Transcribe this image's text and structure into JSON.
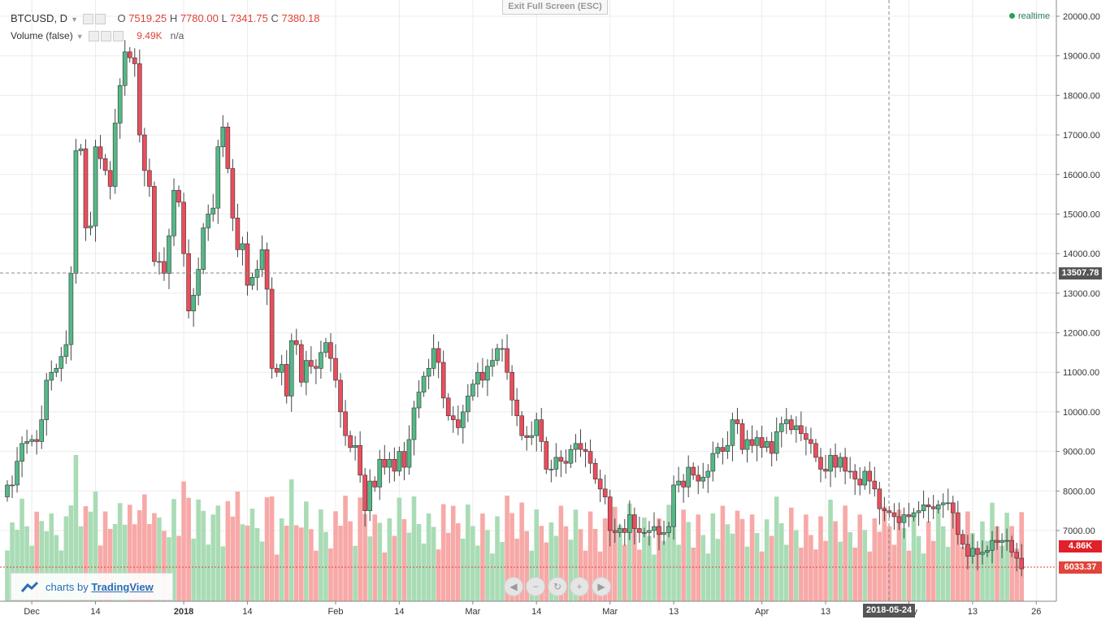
{
  "legend": {
    "symbol": "BTCUSD, D",
    "o_label": "O",
    "o": "7519.25",
    "h_label": "H",
    "h": "7780.00",
    "l_label": "L",
    "l": "7341.75",
    "c_label": "C",
    "c": "7380.18",
    "volume_label": "Volume (false)",
    "volume_value": "9.49K",
    "volume_na": "n/a"
  },
  "exit_fullscreen": "Exit Full Screen (ESC)",
  "realtime": "realtime",
  "branding": {
    "prefix": "charts by",
    "name": "TradingView"
  },
  "crosshair": {
    "price_label": "13507.78",
    "date_label": "2018-05-24"
  },
  "last_price_label": "6033.37",
  "last_volume_label": "4.86K",
  "colors": {
    "up": "#53b987",
    "down": "#eb4d5c",
    "vol_up": "#a9dcb5",
    "vol_down": "#f7a9a7"
  },
  "nav_icons": [
    "chevron-left-icon",
    "zoom-out-icon",
    "reset-icon",
    "zoom-in-icon",
    "chevron-right-icon"
  ],
  "chart_data": {
    "type": "candlestick",
    "title": "BTCUSD, D",
    "y_axis": {
      "ticks": [
        7000,
        8000,
        9000,
        10000,
        11000,
        12000,
        13000,
        14000,
        15000,
        16000,
        17000,
        18000,
        19000,
        20000
      ],
      "tick_labels": [
        "7000.00",
        "8000.00",
        "9000.00",
        "10000.00",
        "11000.00",
        "12000.00",
        "13000.00",
        "14000.00",
        "15000.00",
        "16000.00",
        "17000.00",
        "18000.00",
        "19000.00",
        "20000.00"
      ],
      "range": [
        5500,
        20200
      ]
    },
    "x_axis": {
      "tick_labels": [
        {
          "label": "Dec",
          "idx": 5
        },
        {
          "label": "14",
          "idx": 18
        },
        {
          "label": "2018",
          "idx": 36,
          "bold": true
        },
        {
          "label": "14",
          "idx": 49
        },
        {
          "label": "Feb",
          "idx": 67
        },
        {
          "label": "14",
          "idx": 80
        },
        {
          "label": "Mar",
          "idx": 95
        },
        {
          "label": "14",
          "idx": 108
        },
        {
          "label": "Mar",
          "idx": 123
        },
        {
          "label": "13",
          "idx": 136
        },
        {
          "label": "Apr",
          "idx": 154
        },
        {
          "label": "13",
          "idx": 167
        },
        {
          "label": "May",
          "idx": 184
        },
        {
          "label": "13",
          "idx": 197
        },
        {
          "label": "26",
          "idx": 210
        }
      ]
    },
    "grid": true,
    "closes": [
      8150,
      8150,
      8750,
      9200,
      9250,
      9300,
      9250,
      9800,
      10800,
      11000,
      11100,
      11400,
      11700,
      13500,
      16600,
      16650,
      14650,
      14700,
      16700,
      16400,
      16100,
      15700,
      17300,
      18250,
      19100,
      18950,
      18800,
      17000,
      16100,
      15700,
      13800,
      13800,
      13500,
      14450,
      15600,
      15300,
      14000,
      12550,
      12950,
      13600,
      14650,
      15000,
      15150,
      16700,
      17200,
      16150,
      14900,
      14100,
      14250,
      13200,
      13400,
      13600,
      14100,
      13100,
      11100,
      11000,
      11200,
      10400,
      11800,
      11700,
      10750,
      11300,
      11150,
      11100,
      11500,
      11750,
      11350,
      10800,
      10000,
      9400,
      9100,
      9150,
      8400,
      7500,
      8250,
      8100,
      8800,
      8600,
      8800,
      8500,
      9000,
      8600,
      9300,
      10100,
      10500,
      10900,
      11100,
      11600,
      11250,
      10350,
      9900,
      9800,
      9600,
      10000,
      10400,
      10700,
      11000,
      10800,
      11150,
      11300,
      11600,
      11600,
      11000,
      10300,
      9900,
      9400,
      9350,
      9400,
      9800,
      9250,
      8550,
      8550,
      8850,
      8750,
      8700,
      9050,
      9200,
      9050,
      9000,
      8700,
      8300,
      8050,
      7850,
      7000,
      6950,
      7050,
      6950,
      7400,
      7050,
      6950,
      6950,
      7000,
      7100,
      6900,
      6950,
      7100,
      8150,
      8250,
      8100,
      8600,
      8400,
      8250,
      8350,
      8500,
      8950,
      9100,
      9000,
      9150,
      9800,
      9700,
      9050,
      9300,
      9150,
      9350,
      9100,
      9250,
      8950,
      9500,
      9700,
      9800,
      9550,
      9650,
      9450,
      9300,
      9200,
      8850,
      8550,
      8500,
      8900,
      8600,
      8850,
      8500,
      8500,
      8300,
      8150,
      8500,
      8250,
      8050,
      7550,
      7500,
      7450,
      7350,
      7200,
      7400,
      7350,
      7450,
      7500,
      7650,
      7600,
      7550,
      7650,
      7700,
      7700,
      7450,
      6900,
      6650,
      6350,
      6550,
      6400,
      6450,
      6500,
      6750,
      6700,
      6750,
      6750,
      6450,
      6300,
      6033.37
    ]
  }
}
